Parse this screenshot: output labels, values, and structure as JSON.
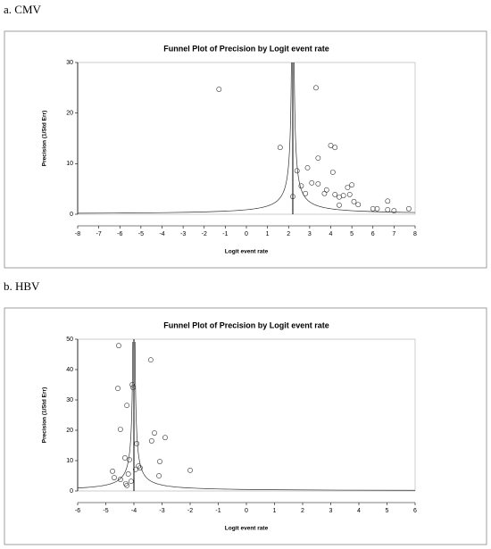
{
  "chart_data": [
    {
      "type": "scatter",
      "panel_label": "a. CMV",
      "title": "Funnel Plot of Precision by Logit event rate",
      "x_label": "Logit event rate",
      "y_label": "Precision (1/Std Err)",
      "xlim": [
        -8,
        8
      ],
      "xticks": [
        -8,
        -7,
        -6,
        -5,
        -4,
        -3,
        -2,
        -1,
        0,
        1,
        2,
        3,
        4,
        5,
        6,
        7,
        8
      ],
      "ylim": [
        0,
        30
      ],
      "yticks": [
        0,
        10,
        20,
        30
      ],
      "funnel_center": 2.2,
      "x": [
        -1.3,
        1.6,
        2.2,
        2.4,
        2.6,
        2.8,
        2.9,
        3.1,
        3.3,
        3.4,
        3.4,
        3.7,
        3.8,
        4.0,
        4.2,
        4.1,
        4.2,
        4.4,
        4.4,
        4.6,
        4.8,
        4.9,
        5.0,
        5.1,
        5.3,
        6.0,
        6.2,
        6.7,
        6.7,
        7.0,
        7.7
      ],
      "values": [
        24.7,
        13.2,
        3.5,
        8.6,
        5.6,
        4.1,
        9.2,
        6.2,
        25,
        11.1,
        6,
        4.1,
        4.8,
        13.6,
        13.2,
        8.3,
        3.9,
        3.4,
        1.8,
        3.7,
        5.3,
        3.9,
        5.8,
        2.5,
        1.9,
        1.1,
        1.1,
        2.6,
        0.9,
        0.7,
        1.1
      ]
    },
    {
      "type": "scatter",
      "panel_label": "b. HBV",
      "title": "Funnel Plot of Precision by Logit event rate",
      "x_label": "Logit event rate",
      "y_label": "Precision (1/Std Err)",
      "xlim": [
        -6,
        6
      ],
      "xticks": [
        -6,
        -5,
        -4,
        -3,
        -2,
        -1,
        0,
        1,
        2,
        3,
        4,
        5,
        6
      ],
      "ylim": [
        0,
        50
      ],
      "yticks": [
        0,
        10,
        20,
        30,
        40,
        50
      ],
      "funnel_center": -4.0,
      "x": [
        -4.54,
        -4.57,
        -4.48,
        -4.25,
        -4.32,
        -4.16,
        -4.06,
        -4.03,
        -4.76,
        -4.7,
        -4.48,
        -4.29,
        -4.25,
        -4.1,
        -3.94,
        -3.9,
        -3.84,
        -3.78,
        -3.4,
        -3.37,
        -3.27,
        -3.08,
        -3.11,
        -2.89,
        -2.0,
        -4.2
      ],
      "values": [
        47.9,
        33.8,
        20.3,
        28.2,
        10.9,
        10.3,
        35,
        34.1,
        6.5,
        4.4,
        3.8,
        2.4,
        1.8,
        3.2,
        7.1,
        15.6,
        8.2,
        7.6,
        43.2,
        16.5,
        19.1,
        9.7,
        5,
        17.6,
        6.8,
        5.6
      ]
    }
  ]
}
